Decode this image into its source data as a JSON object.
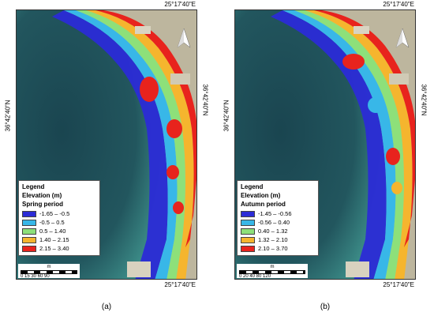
{
  "panels": [
    {
      "id": "a",
      "caption": "(a)",
      "coord_top": "25°17'40\"E",
      "coord_bottom": "25°17'40\"E",
      "coord_left": "36°42'40\"N",
      "coord_right": "36°42'40\"N",
      "legend": {
        "title": "Legend",
        "subtitle": "Elevation (m)",
        "period": "Spring period",
        "items": [
          {
            "label": "-1.65 – -0.5",
            "color": "#2b2bd6"
          },
          {
            "label": "-0.5 – 0.5",
            "color": "#38b7e8"
          },
          {
            "label": "0.5 – 1.40",
            "color": "#8de07a"
          },
          {
            "label": "1.40 – 2.15",
            "color": "#f5b52e"
          },
          {
            "label": "2.15 – 3.40",
            "color": "#e8231d"
          }
        ]
      },
      "scale": {
        "unit": "m",
        "ticks": "0 15 30    60      90"
      }
    },
    {
      "id": "b",
      "caption": "(b)",
      "coord_top": "25°17'40\"E",
      "coord_bottom": "25°17'40\"E",
      "coord_left": "36°42'40\"N",
      "coord_right": "36°42'40\"N",
      "legend": {
        "title": "Legend",
        "subtitle": "Elevation (m)",
        "period": "Autumn period",
        "items": [
          {
            "label": "-1.45 – -0.56",
            "color": "#2b2bd6"
          },
          {
            "label": "-0.56 – 0.40",
            "color": "#38b7e8"
          },
          {
            "label": "0.40 – 1.32",
            "color": "#8de07a"
          },
          {
            "label": "1.32 – 2.10",
            "color": "#f5b52e"
          },
          {
            "label": "2.10 – 3.70",
            "color": "#e8231d"
          }
        ]
      },
      "scale": {
        "unit": "m",
        "ticks": "0  20  40    80        120"
      }
    }
  ],
  "north_label": "N",
  "colors": {
    "sea_deep": "#1d4a55",
    "sea_shallow": "#2f7478",
    "land": "#b9b49d"
  }
}
